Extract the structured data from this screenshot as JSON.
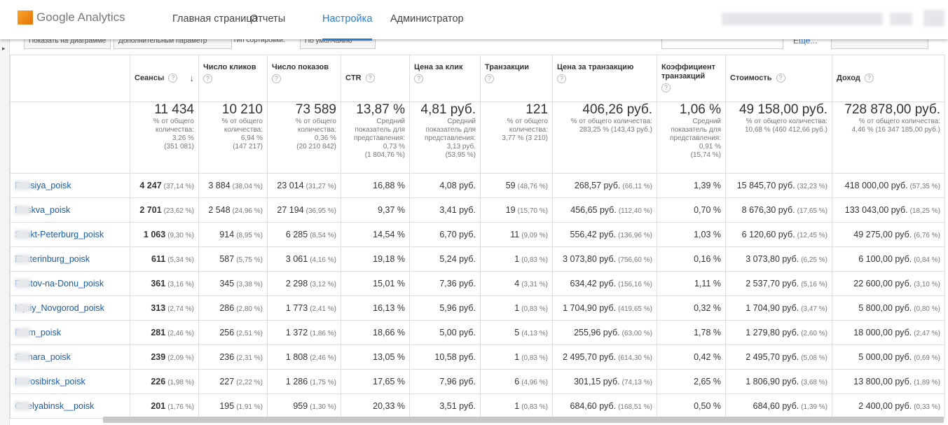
{
  "header": {
    "logo": "Google Analytics",
    "nav": [
      "Главная страница",
      "Отчеты",
      "Настройка",
      "Администратор"
    ]
  },
  "toolbar": {
    "items": [
      "Показать на диаграмме",
      "Дополнительный параметр",
      "Тип сортировки:",
      "По умолчанию",
      "Еще..."
    ]
  },
  "table": {
    "columns": [
      "Сеансы",
      "Число кликов",
      "Число показов",
      "CTR",
      "Цена за клик",
      "Транзакции",
      "Цена за транзакцию",
      "Коэффициент транзакций",
      "Стоимость",
      "Доход"
    ],
    "totals": [
      {
        "value": "11 434",
        "note": [
          "% от общего",
          "количества:",
          "3,26 %",
          "(351 081)"
        ]
      },
      {
        "value": "10 210",
        "note": [
          "% от общего",
          "количества:",
          "6,94 %",
          "(147 217)"
        ]
      },
      {
        "value": "73 589",
        "note": [
          "% от общего",
          "количества:",
          "0,36 %",
          "(20 210 842)"
        ]
      },
      {
        "value": "13,87 %",
        "note": [
          "Средний",
          "показатель для",
          "представления:",
          "0,73 %",
          "(1 804,76 %)"
        ]
      },
      {
        "value": "4,81 руб.",
        "note": [
          "Средний",
          "показатель для",
          "представления:",
          "3,13 руб.",
          "(53,95 %)"
        ]
      },
      {
        "value": "121",
        "note": [
          "% от общего",
          "количества:",
          "3,77 % (3 210)"
        ]
      },
      {
        "value": "406,26 руб.",
        "note": [
          "% от общего количества:",
          "283,25 % (143,43 руб.)"
        ]
      },
      {
        "value": "1,06 %",
        "note": [
          "Средний",
          "показатель для",
          "представления:",
          "0,91 %",
          "(15,74 %)"
        ]
      },
      {
        "value": "49 158,00 руб.",
        "note": [
          "% от общего количества:",
          "10,68 % (460 412,66 руб.)"
        ]
      },
      {
        "value": "728 878,00 руб.",
        "note": [
          "% от общего количества:",
          "4,46 % (16 347 185,00 руб.)"
        ]
      }
    ],
    "rows": [
      {
        "name": "Rossiya_poisk",
        "cells": [
          [
            "4 247",
            "(37,14 %)"
          ],
          [
            "3 884",
            "(38,04 %)"
          ],
          [
            "23 014",
            "(31,27 %)"
          ],
          [
            "16,88 %"
          ],
          [
            "4,08 руб."
          ],
          [
            "59",
            "(48,76 %)"
          ],
          [
            "268,57 руб.",
            "(66,11 %)"
          ],
          [
            "1,39 %"
          ],
          [
            "15 845,70 руб.",
            "(32,23 %)"
          ],
          [
            "418 000,00 руб.",
            "(57,35 %)"
          ]
        ]
      },
      {
        "name": "Moskva_poisk",
        "cells": [
          [
            "2 701",
            "(23,62 %)"
          ],
          [
            "2 548",
            "(24,96 %)"
          ],
          [
            "27 194",
            "(36,95 %)"
          ],
          [
            "9,37 %"
          ],
          [
            "3,41 руб."
          ],
          [
            "19",
            "(15,70 %)"
          ],
          [
            "456,65 руб.",
            "(112,40 %)"
          ],
          [
            "0,70 %"
          ],
          [
            "8 676,30 руб.",
            "(17,65 %)"
          ],
          [
            "133 043,00 руб.",
            "(18,25 %)"
          ]
        ]
      },
      {
        "name": "Sankt-Peterburg_poisk",
        "cells": [
          [
            "1 063",
            "(9,30 %)"
          ],
          [
            "914",
            "(8,95 %)"
          ],
          [
            "6 285",
            "(8,54 %)"
          ],
          [
            "14,54 %"
          ],
          [
            "6,70 руб."
          ],
          [
            "11",
            "(9,09 %)"
          ],
          [
            "556,42 руб.",
            "(136,96 %)"
          ],
          [
            "1,03 %"
          ],
          [
            "6 120,60 руб.",
            "(12,45 %)"
          ],
          [
            "49 275,00 руб.",
            "(6,76 %)"
          ]
        ]
      },
      {
        "name": "Ekaterinburg_poisk",
        "cells": [
          [
            "611",
            "(5,34 %)"
          ],
          [
            "587",
            "(5,75 %)"
          ],
          [
            "3 061",
            "(4,16 %)"
          ],
          [
            "19,18 %"
          ],
          [
            "5,24 руб."
          ],
          [
            "1",
            "(0,83 %)"
          ],
          [
            "3 073,80 руб.",
            "(756,60 %)"
          ],
          [
            "0,16 %"
          ],
          [
            "3 073,80 руб.",
            "(6,25 %)"
          ],
          [
            "6 100,00 руб.",
            "(0,84 %)"
          ]
        ]
      },
      {
        "name": "Rostov-na-Donu_poisk",
        "cells": [
          [
            "361",
            "(3,16 %)"
          ],
          [
            "345",
            "(3,38 %)"
          ],
          [
            "2 298",
            "(3,12 %)"
          ],
          [
            "15,01 %"
          ],
          [
            "7,36 руб."
          ],
          [
            "4",
            "(3,31 %)"
          ],
          [
            "634,42 руб.",
            "(156,16 %)"
          ],
          [
            "1,11 %"
          ],
          [
            "2 537,70 руб.",
            "(5,16 %)"
          ],
          [
            "22 600,00 руб.",
            "(3,10 %)"
          ]
        ]
      },
      {
        "name": "Nijniy_Novgorod_poisk",
        "cells": [
          [
            "313",
            "(2,74 %)"
          ],
          [
            "286",
            "(2,80 %)"
          ],
          [
            "1 773",
            "(2,41 %)"
          ],
          [
            "16,13 %"
          ],
          [
            "5,96 руб."
          ],
          [
            "1",
            "(0,83 %)"
          ],
          [
            "1 704,90 руб.",
            "(419,65 %)"
          ],
          [
            "0,32 %"
          ],
          [
            "1 704,90 руб.",
            "(3,47 %)"
          ],
          [
            "5 800,00 руб.",
            "(0,80 %)"
          ]
        ]
      },
      {
        "name": "Perm_poisk",
        "cells": [
          [
            "281",
            "(2,46 %)"
          ],
          [
            "256",
            "(2,51 %)"
          ],
          [
            "1 372",
            "(1,86 %)"
          ],
          [
            "18,66 %"
          ],
          [
            "5,00 руб."
          ],
          [
            "5",
            "(4,13 %)"
          ],
          [
            "255,96 руб.",
            "(63,00 %)"
          ],
          [
            "1,78 %"
          ],
          [
            "1 279,80 руб.",
            "(2,60 %)"
          ],
          [
            "18 000,00 руб.",
            "(2,47 %)"
          ]
        ]
      },
      {
        "name": "Samara_poisk",
        "cells": [
          [
            "239",
            "(2,09 %)"
          ],
          [
            "236",
            "(2,31 %)"
          ],
          [
            "1 808",
            "(2,46 %)"
          ],
          [
            "13,05 %"
          ],
          [
            "10,58 руб."
          ],
          [
            "1",
            "(0,83 %)"
          ],
          [
            "2 495,70 руб.",
            "(614,30 %)"
          ],
          [
            "0,42 %"
          ],
          [
            "2 495,70 руб.",
            "(5,08 %)"
          ],
          [
            "5 000,00 руб.",
            "(0,69 %)"
          ]
        ]
      },
      {
        "name": "Novosibirsk_poisk",
        "cells": [
          [
            "226",
            "(1,98 %)"
          ],
          [
            "227",
            "(2,22 %)"
          ],
          [
            "1 286",
            "(1,75 %)"
          ],
          [
            "17,65 %"
          ],
          [
            "7,96 руб."
          ],
          [
            "6",
            "(4,96 %)"
          ],
          [
            "301,15 руб.",
            "(74,13 %)"
          ],
          [
            "2,65 %"
          ],
          [
            "1 806,90 руб.",
            "(3,68 %)"
          ],
          [
            "13 800,00 руб.",
            "(1,89 %)"
          ]
        ]
      },
      {
        "name": "CHelyabinsk__poisk",
        "cells": [
          [
            "201",
            "(1,76 %)"
          ],
          [
            "195",
            "(1,91 %)"
          ],
          [
            "959",
            "(1,30 %)"
          ],
          [
            "20,33 %"
          ],
          [
            "3,51 руб."
          ],
          [
            "1",
            "(0,83 %)"
          ],
          [
            "684,60 руб.",
            "(168,51 %)"
          ],
          [
            "0,50 %"
          ],
          [
            "684,60 руб.",
            "(1,39 %)"
          ],
          [
            "2 400,00 руб.",
            "(0,33 %)"
          ]
        ]
      }
    ]
  }
}
